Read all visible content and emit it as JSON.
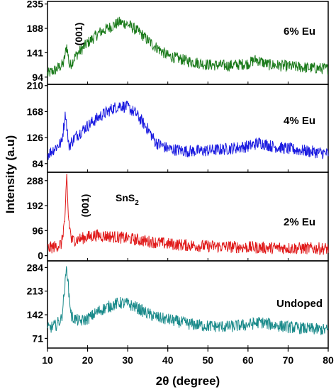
{
  "chart_data": {
    "type": "line",
    "xlabel": "2θ (degree)",
    "ylabel": "Intensity (a.u)",
    "xlim": [
      10,
      80
    ],
    "x_ticks": [
      10,
      20,
      30,
      40,
      50,
      60,
      70,
      80
    ],
    "grid": false,
    "legend": "none",
    "panels": [
      {
        "label": "6% Eu",
        "color": "#1a7a1a",
        "ylim": [
          80,
          240
        ],
        "y_ticks": [
          94,
          141,
          188,
          235
        ],
        "annotations": [
          "(001)"
        ],
        "series": [
          {
            "x": [
              10,
              12,
              14,
              14.8,
              15.5,
              17,
              20,
              23,
              26,
              28,
              30,
              33,
              36,
              40,
              45,
              50,
              55,
              60,
              62,
              65,
              70,
              75,
              80
            ],
            "y": [
              100,
              108,
              120,
              155,
              115,
              135,
              160,
              180,
              192,
              200,
              196,
              180,
              158,
              135,
              125,
              118,
              116,
              120,
              128,
              118,
              115,
              112,
              110
            ]
          }
        ]
      },
      {
        "label": "4% Eu",
        "color": "#1a1ae0",
        "ylim": [
          70,
          212
        ],
        "y_ticks": [
          84,
          126,
          168,
          210
        ],
        "annotations": [],
        "series": [
          {
            "x": [
              10,
              12,
              13.5,
              14.5,
              15.3,
              17,
              20,
              23,
              26,
              28,
              30,
              32,
              35,
              37,
              40,
              45,
              50,
              55,
              60,
              63,
              66,
              70,
              75,
              80
            ],
            "y": [
              98,
              110,
              118,
              165,
              112,
              128,
              145,
              160,
              172,
              178,
              175,
              165,
              140,
              118,
              108,
              104,
              105,
              108,
              112,
              118,
              112,
              108,
              104,
              100
            ]
          }
        ]
      },
      {
        "label": "2% Eu",
        "color": "#e01a1a",
        "ylim": [
          -20,
          320
        ],
        "y_ticks": [
          0,
          96,
          192,
          288
        ],
        "annotations": [
          "(001)",
          "SnS2"
        ],
        "series": [
          {
            "x": [
              10,
              12,
              13.5,
              14.4,
              14.8,
              15.2,
              16,
              18,
              20,
              22,
              25,
              28,
              30,
              35,
              40,
              45,
              50,
              55,
              60,
              65,
              70,
              75,
              80
            ],
            "y": [
              28,
              35,
              45,
              150,
              305,
              150,
              58,
              64,
              72,
              78,
              75,
              70,
              66,
              55,
              45,
              40,
              36,
              34,
              32,
              30,
              29,
              28,
              27
            ]
          }
        ]
      },
      {
        "label": "Undoped",
        "color": "#1a8a8a",
        "ylim": [
          42,
          304
        ],
        "y_ticks": [
          71,
          142,
          213,
          284
        ],
        "annotations": [],
        "series": [
          {
            "x": [
              10,
              12,
              13.5,
              14.3,
              14.8,
              15.3,
              16,
              18,
              20,
              23,
              26,
              28,
              30,
              32,
              35,
              38,
              40,
              45,
              50,
              55,
              60,
              63,
              66,
              70,
              75,
              80
            ],
            "y": [
              100,
              110,
              130,
              220,
              290,
              210,
              135,
              122,
              130,
              155,
              170,
              178,
              175,
              165,
              145,
              132,
              128,
              115,
              108,
              106,
              112,
              120,
              112,
              105,
              100,
              96
            ]
          }
        ]
      }
    ]
  }
}
